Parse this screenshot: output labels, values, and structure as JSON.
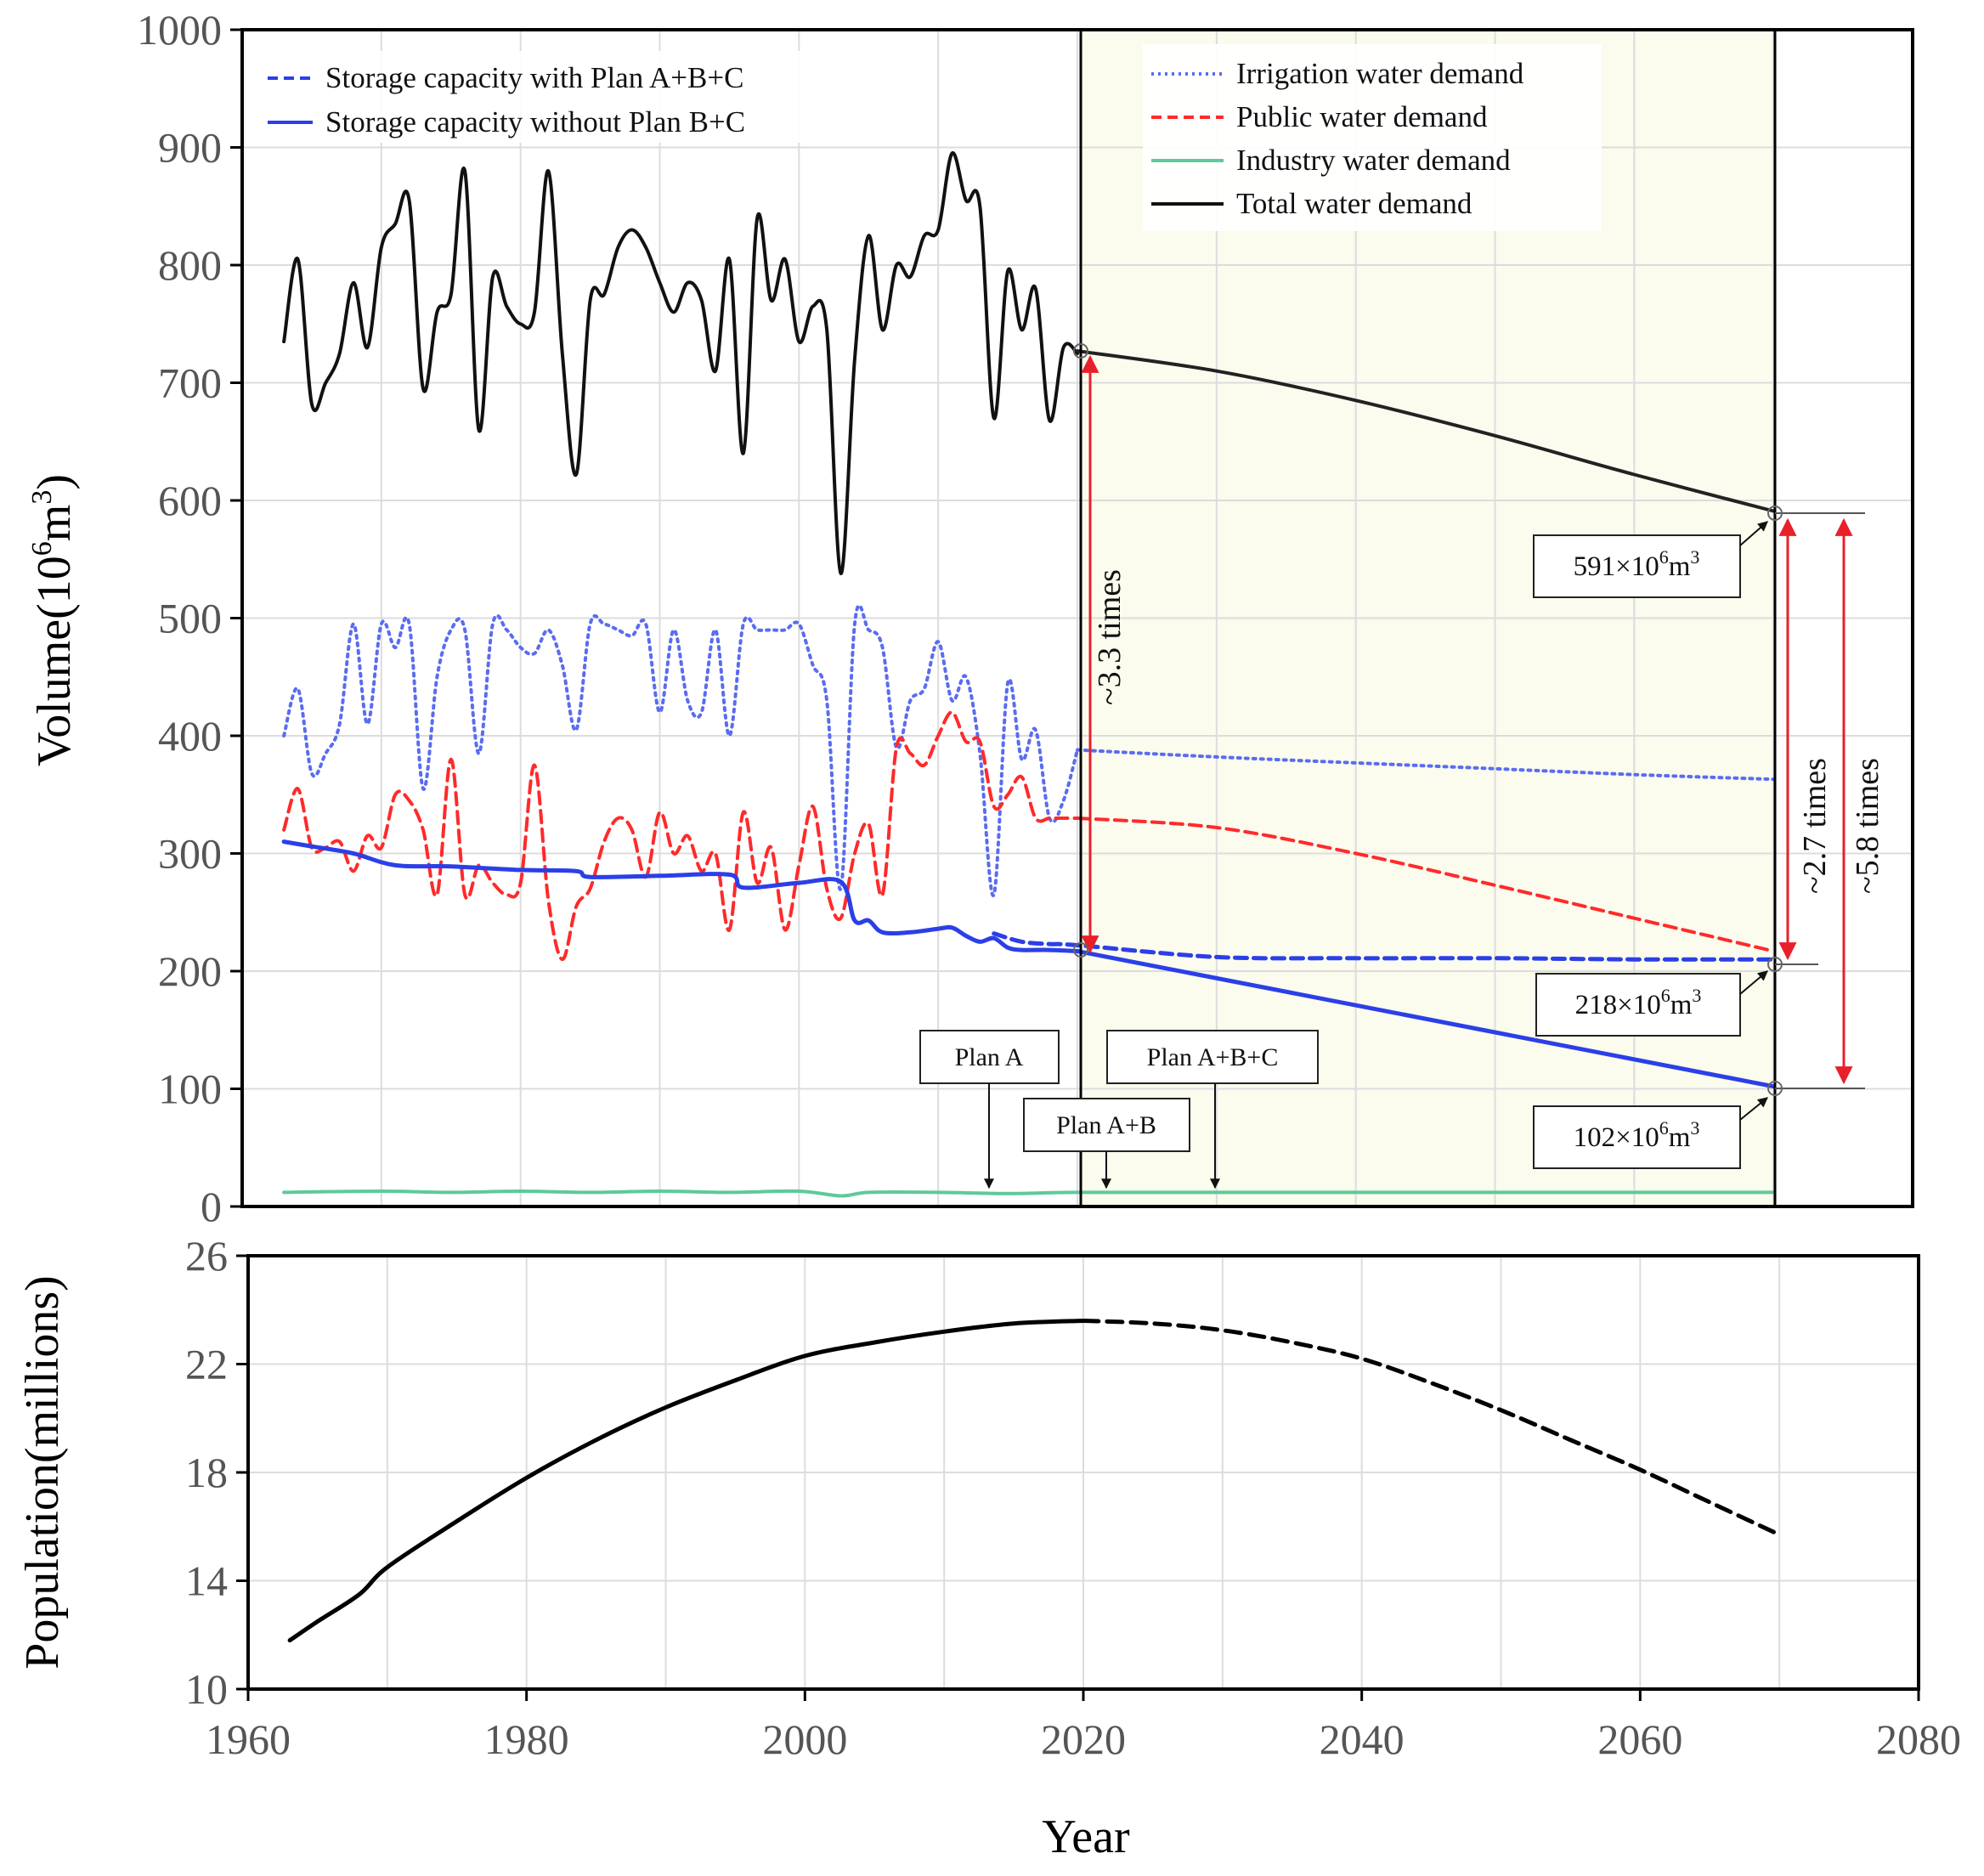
{
  "chart_data": [
    {
      "type": "line",
      "title": "",
      "ylabel_main": "Volume(10",
      "ylabel_sup": "6",
      "ylabel_unit": "m",
      "ylabel_sup2": "3",
      "ylabel_close": ")",
      "xlim": [
        1960,
        2080
      ],
      "ylim": [
        0,
        1000
      ],
      "yticks": [
        "0",
        "100",
        "200",
        "300",
        "400",
        "500",
        "600",
        "700",
        "800",
        "900",
        "1000"
      ],
      "grid": true,
      "projection_shading": [
        2020,
        2070
      ],
      "legend_left": [
        {
          "label": "Storage capacity with Plan A+B+C",
          "color": "#2b3fe8",
          "style": "dashed"
        },
        {
          "label": "Storage capacity without Plan B+C",
          "color": "#2b3fe8",
          "style": "solid"
        }
      ],
      "legend_right": [
        {
          "label": "Irrigation water demand",
          "color": "#5a6cf0",
          "style": "dotted"
        },
        {
          "label": "Public water demand",
          "color": "#ff2a2a",
          "style": "dashed"
        },
        {
          "label": "Industry water demand",
          "color": "#5ec99a",
          "style": "solid"
        },
        {
          "label": "Total water demand",
          "color": "#111111",
          "style": "solid"
        }
      ],
      "series": [
        {
          "name": "Total water demand",
          "color": "#111111",
          "style": "solid",
          "x": [
            1963,
            1964,
            1965,
            1966,
            1967,
            1968,
            1969,
            1970,
            1971,
            1972,
            1973,
            1974,
            1975,
            1976,
            1977,
            1978,
            1979,
            1980,
            1981,
            1982,
            1983,
            1984,
            1985,
            1986,
            1987,
            1988,
            1989,
            1990,
            1991,
            1992,
            1993,
            1994,
            1995,
            1996,
            1997,
            1998,
            1999,
            2000,
            2001,
            2002,
            2003,
            2004,
            2005,
            2006,
            2007,
            2008,
            2009,
            2010,
            2011,
            2012,
            2013,
            2014,
            2015,
            2016,
            2017,
            2018,
            2019,
            2020
          ],
          "y": [
            735,
            805,
            682,
            700,
            725,
            785,
            730,
            815,
            835,
            855,
            695,
            760,
            775,
            880,
            660,
            790,
            765,
            750,
            760,
            880,
            725,
            622,
            770,
            775,
            815,
            830,
            815,
            785,
            760,
            785,
            770,
            710,
            805,
            640,
            840,
            770,
            805,
            735,
            765,
            745,
            538,
            720,
            825,
            745,
            800,
            790,
            825,
            830,
            895,
            855,
            850,
            670,
            795,
            745,
            780,
            668,
            730,
            725
          ]
        },
        {
          "name": "Total water demand (projection)",
          "color": "#222222",
          "style": "solid",
          "x": [
            2020,
            2030,
            2040,
            2050,
            2060,
            2070
          ],
          "y": [
            727,
            710,
            685,
            655,
            622,
            591
          ]
        },
        {
          "name": "Irrigation water demand",
          "color": "#5a6cf0",
          "style": "dotted",
          "x": [
            1963,
            1964,
            1965,
            1966,
            1967,
            1968,
            1969,
            1970,
            1971,
            1972,
            1973,
            1974,
            1975,
            1976,
            1977,
            1978,
            1979,
            1980,
            1981,
            1982,
            1983,
            1984,
            1985,
            1986,
            1987,
            1988,
            1989,
            1990,
            1991,
            1992,
            1993,
            1994,
            1995,
            1996,
            1997,
            1998,
            1999,
            2000,
            2001,
            2002,
            2003,
            2004,
            2005,
            2006,
            2007,
            2008,
            2009,
            2010,
            2011,
            2012,
            2013,
            2014,
            2015,
            2016,
            2017,
            2018,
            2019,
            2020
          ],
          "y": [
            400,
            440,
            368,
            385,
            410,
            495,
            410,
            495,
            475,
            495,
            355,
            450,
            490,
            490,
            385,
            495,
            490,
            475,
            470,
            490,
            460,
            405,
            495,
            495,
            490,
            485,
            495,
            420,
            490,
            430,
            420,
            490,
            400,
            495,
            490,
            490,
            490,
            495,
            460,
            430,
            270,
            495,
            490,
            475,
            390,
            430,
            440,
            480,
            430,
            450,
            385,
            265,
            445,
            380,
            405,
            330,
            345,
            388
          ]
        },
        {
          "name": "Irrigation water demand (projection)",
          "color": "#5a6cf0",
          "style": "dotted",
          "x": [
            2020,
            2030,
            2040,
            2050,
            2060,
            2070
          ],
          "y": [
            388,
            382,
            377,
            372,
            367,
            363
          ]
        },
        {
          "name": "Public water demand",
          "color": "#ff2a2a",
          "style": "dashed",
          "x": [
            1963,
            1964,
            1965,
            1966,
            1967,
            1968,
            1969,
            1970,
            1971,
            1972,
            1973,
            1974,
            1975,
            1976,
            1977,
            1978,
            1979,
            1980,
            1981,
            1982,
            1983,
            1984,
            1985,
            1986,
            1987,
            1988,
            1989,
            1990,
            1991,
            1992,
            1993,
            1994,
            1995,
            1996,
            1997,
            1998,
            1999,
            2000,
            2001,
            2002,
            2003,
            2004,
            2005,
            2006,
            2007,
            2008,
            2009,
            2010,
            2011,
            2012,
            2013,
            2014,
            2015,
            2016,
            2017,
            2018,
            2019,
            2020
          ],
          "y": [
            320,
            355,
            305,
            305,
            310,
            285,
            315,
            305,
            350,
            345,
            320,
            265,
            380,
            265,
            290,
            275,
            265,
            275,
            375,
            260,
            210,
            255,
            270,
            310,
            330,
            320,
            280,
            335,
            300,
            315,
            285,
            300,
            235,
            335,
            275,
            305,
            235,
            290,
            340,
            270,
            245,
            300,
            325,
            265,
            390,
            385,
            375,
            400,
            420,
            395,
            395,
            340,
            350,
            365,
            330,
            330,
            330,
            330
          ]
        },
        {
          "name": "Public water demand (projection)",
          "color": "#ff2a2a",
          "style": "dashed",
          "x": [
            2020,
            2030,
            2040,
            2050,
            2060,
            2070
          ],
          "y": [
            330,
            322,
            300,
            273,
            245,
            217
          ]
        },
        {
          "name": "Industry water demand",
          "color": "#5ec99a",
          "style": "solid",
          "x": [
            1963,
            1970,
            1975,
            1980,
            1985,
            1990,
            1995,
            2000,
            2003,
            2005,
            2010,
            2015,
            2020,
            2030,
            2040,
            2050,
            2060,
            2070
          ],
          "y": [
            12,
            13,
            12,
            13,
            12,
            13,
            12,
            13,
            9,
            12,
            12,
            11,
            12,
            12,
            12,
            12,
            12,
            12
          ]
        },
        {
          "name": "Storage capacity with Plan A+B+C",
          "color": "#2b3fe8",
          "style": "dashed",
          "x": [
            2014,
            2016,
            2018,
            2020,
            2030,
            2040,
            2050,
            2060,
            2070
          ],
          "y": [
            232,
            225,
            223,
            222,
            212,
            211,
            211,
            210,
            210
          ]
        },
        {
          "name": "Storage capacity without Plan B+C",
          "color": "#2b3fe8",
          "style": "solid",
          "x": [
            1963,
            1965,
            1968,
            1971,
            1975,
            1980,
            1984,
            1985,
            1990,
            1995,
            1996,
            2000,
            2003,
            2004,
            2005,
            2006,
            2008,
            2010,
            2011,
            2012,
            2013,
            2014,
            2015,
            2016,
            2018,
            2020
          ],
          "y": [
            310,
            306,
            300,
            290,
            289,
            286,
            285,
            280,
            281,
            282,
            271,
            275,
            276,
            243,
            243,
            233,
            233,
            236,
            237,
            230,
            225,
            228,
            220,
            218,
            218,
            217
          ]
        },
        {
          "name": "Storage capacity without Plan B+C (projection)",
          "color": "#2b3fe8",
          "style": "solid",
          "x": [
            2020,
            2070
          ],
          "y": [
            217,
            102
          ]
        }
      ],
      "annotations": {
        "ratio_3_3": "~3.3 times",
        "ratio_2_7": "~2.7 times",
        "ratio_5_8": "~5.8 times",
        "box_591": {
          "num": "591×10",
          "sup": "6",
          "unit": "m",
          "sup2": "3"
        },
        "box_218": {
          "num": "218×10",
          "sup": "6",
          "unit": "m",
          "sup2": "3"
        },
        "box_102": {
          "num": "102×10",
          "sup": "6",
          "unit": "m",
          "sup2": "3"
        },
        "plan_a": "Plan A",
        "plan_ab": "Plan A+B",
        "plan_abc": "Plan A+B+C"
      }
    },
    {
      "type": "line",
      "title": "",
      "xlabel": "Year",
      "ylabel": "Population(millions)",
      "xlim": [
        1960,
        2080
      ],
      "ylim": [
        10,
        26
      ],
      "xticks": [
        "1960",
        "1980",
        "2000",
        "2020",
        "2040",
        "2060",
        "2080"
      ],
      "yticks": [
        "10",
        "14",
        "18",
        "22",
        "26"
      ],
      "grid": true,
      "series": [
        {
          "name": "Population (observed)",
          "color": "#000000",
          "style": "solid",
          "x": [
            1963,
            1965,
            1968,
            1970,
            1975,
            1980,
            1985,
            1990,
            1995,
            2000,
            2005,
            2010,
            2015,
            2020
          ],
          "y": [
            11.8,
            12.5,
            13.5,
            14.5,
            16.2,
            17.8,
            19.2,
            20.4,
            21.4,
            22.3,
            22.8,
            23.2,
            23.5,
            23.6
          ]
        },
        {
          "name": "Population (projected)",
          "color": "#000000",
          "style": "dashed",
          "x": [
            2020,
            2025,
            2030,
            2035,
            2040,
            2045,
            2050,
            2055,
            2060,
            2065,
            2070
          ],
          "y": [
            23.6,
            23.5,
            23.25,
            22.8,
            22.2,
            21.3,
            20.3,
            19.2,
            18.1,
            16.9,
            15.7
          ]
        }
      ]
    }
  ]
}
